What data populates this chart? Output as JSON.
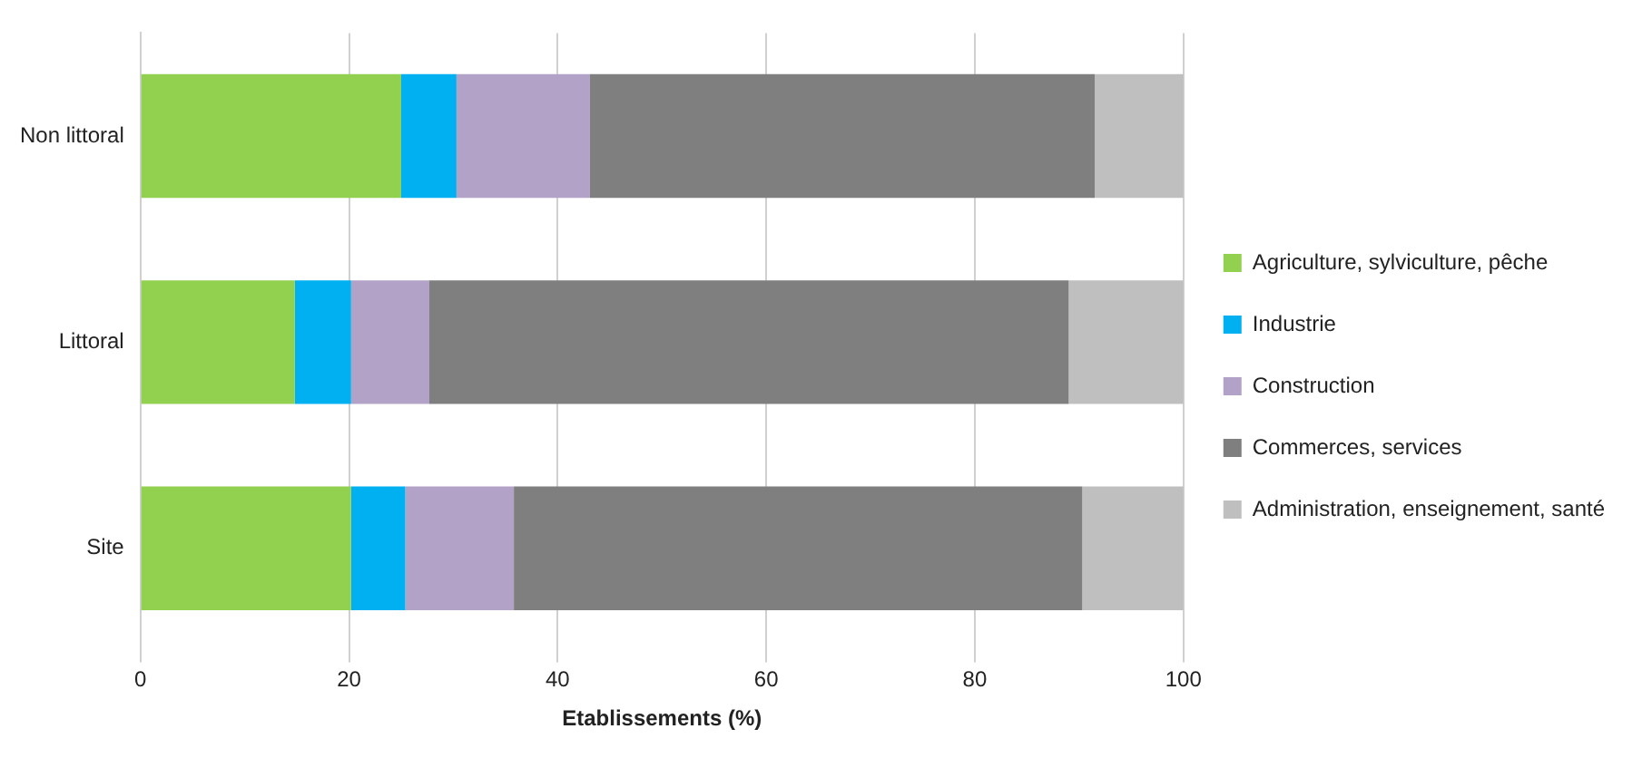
{
  "chart_data": {
    "type": "bar",
    "orientation": "horizontal",
    "stacked": true,
    "xlabel": "Etablissements (%)",
    "categories": [
      "Non littoral",
      "Littoral",
      "Site"
    ],
    "series": [
      {
        "name": "Agriculture, sylviculture, pêche",
        "color": "#92d050",
        "values": [
          25,
          14.8,
          20.2
        ]
      },
      {
        "name": "Industrie",
        "color": "#00b0f0",
        "values": [
          5.3,
          5.4,
          5.2
        ]
      },
      {
        "name": "Construction",
        "color": "#b3a2c7",
        "values": [
          12.8,
          7.5,
          10.4
        ]
      },
      {
        "name": "Commerces, services",
        "color": "#7f7f7f",
        "values": [
          48.4,
          61.3,
          54.5
        ]
      },
      {
        "name": "Administration, enseignement, santé",
        "color": "#bfbfbf",
        "values": [
          8.5,
          11.0,
          9.7
        ]
      }
    ],
    "xlim": [
      0,
      100
    ],
    "xticks": [
      0,
      20,
      40,
      60,
      80,
      100
    ],
    "grid": "x",
    "legend": "right"
  }
}
